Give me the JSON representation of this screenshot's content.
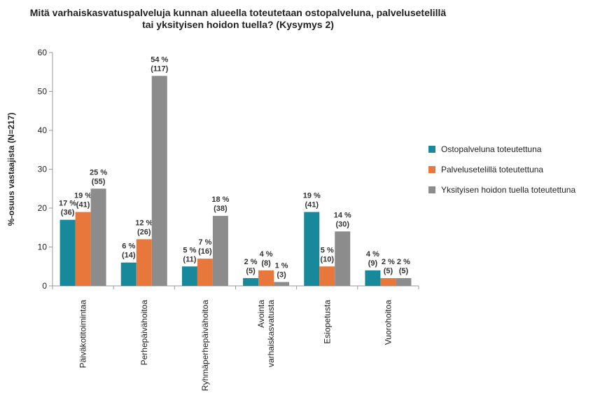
{
  "chart_data": {
    "type": "bar",
    "title": "Mitä varhaiskasvatuspalveluja kunnan alueella toteutetaan ostopalveluna, palvelusetelillä tai yksityisen hoidon tuella? (Kysymys 2)",
    "y_label": "%-osuus vastaajista (N=217)",
    "categories": [
      "Päiväkotitoimintaa",
      "Perhepäivähoitoa",
      "Ryhmäperhepäivähoitoa",
      "Avointa\nvarhaiskasvatusta",
      "Esiopetusta",
      "Vuorohoitoa"
    ],
    "series": [
      {
        "name": "Ostopalveluna toteutettuna",
        "color": "#17899b",
        "values": [
          17,
          6,
          5,
          2,
          19,
          4
        ],
        "value_labels": [
          "17 %\n(36)",
          "6  %\n(14)",
          "5 %\n(11)",
          "2 %\n(5)",
          "19 %\n(41)",
          "4 %\n(9)"
        ]
      },
      {
        "name": "Palvelusetelillä toteutettuna",
        "color": "#e8773b",
        "values": [
          19,
          12,
          7,
          4,
          5,
          2
        ],
        "value_labels": [
          "19 %\n(41)",
          "12 %\n(26)",
          "7 %\n(16)",
          "4 %\n(8)",
          "5 %\n(10)",
          "2 %\n(5)"
        ]
      },
      {
        "name": "Yksityisen hoidon tuella toteutettuna",
        "color": "#8c8c8c",
        "values": [
          25,
          54,
          18,
          1,
          14,
          2
        ],
        "value_labels": [
          "25 %\n(55)",
          "54 %\n(117)",
          "18 %\n(38)",
          "1 %\n(3)",
          "14 %\n(30)",
          "2 %\n(5)"
        ]
      }
    ],
    "ylim": [
      0,
      60
    ],
    "yticks": [
      0,
      10,
      20,
      30,
      40,
      50,
      60
    ],
    "grid": false,
    "legend": "right"
  }
}
